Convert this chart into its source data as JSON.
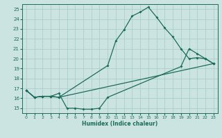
{
  "xlabel": "Humidex (Indice chaleur)",
  "xlim": [
    -0.5,
    23.5
  ],
  "ylim": [
    14.5,
    25.5
  ],
  "xticks": [
    0,
    1,
    2,
    3,
    4,
    5,
    6,
    7,
    8,
    9,
    10,
    11,
    12,
    13,
    14,
    15,
    16,
    17,
    18,
    19,
    20,
    21,
    22,
    23
  ],
  "yticks": [
    15,
    16,
    17,
    18,
    19,
    20,
    21,
    22,
    23,
    24,
    25
  ],
  "bg_color": "#cce4e1",
  "grid_color": "#aacfcc",
  "line_color": "#1c6b5a",
  "line1_x": [
    0,
    1,
    2,
    3,
    4,
    10,
    11,
    12,
    13,
    14,
    15,
    16,
    17,
    18,
    19,
    20,
    21,
    22,
    23
  ],
  "line1_y": [
    16.8,
    16.1,
    16.2,
    16.2,
    16.1,
    19.3,
    21.8,
    22.9,
    24.3,
    24.7,
    25.2,
    24.2,
    23.1,
    22.2,
    21.0,
    20.0,
    20.1,
    20.0,
    19.5
  ],
  "line2_x": [
    0,
    1,
    2,
    3,
    4,
    5,
    6,
    7,
    8,
    9,
    10,
    19,
    20,
    21,
    22,
    23
  ],
  "line2_y": [
    16.8,
    16.1,
    16.2,
    16.2,
    16.5,
    15.0,
    15.0,
    14.9,
    14.9,
    15.0,
    16.1,
    19.2,
    21.0,
    20.5,
    20.0,
    19.5
  ],
  "line3_x": [
    0,
    1,
    2,
    3,
    4,
    23
  ],
  "line3_y": [
    16.8,
    16.1,
    16.2,
    16.2,
    16.1,
    19.5
  ]
}
